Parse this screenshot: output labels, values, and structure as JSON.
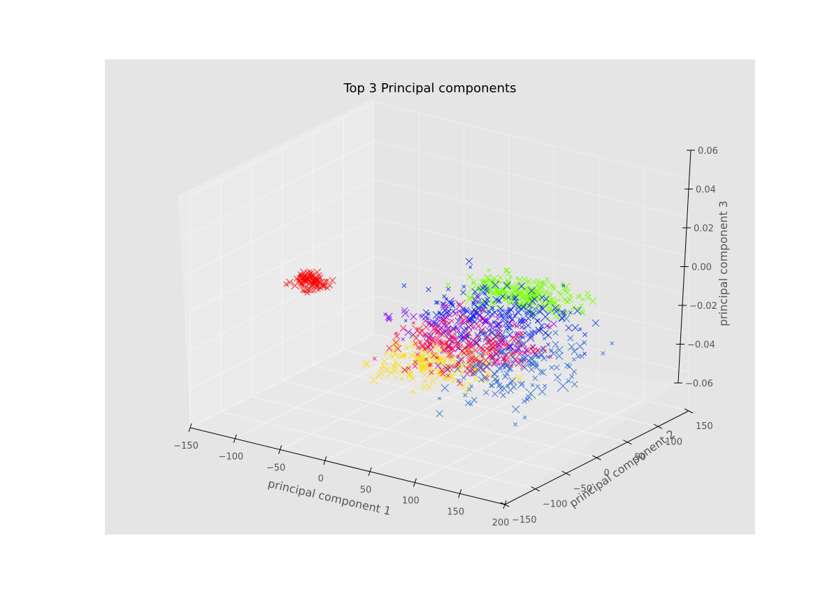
{
  "chart_data": {
    "type": "scatter",
    "projection": "3d",
    "title": "Top 3 Principal components",
    "xlabel": "principal component 1",
    "ylabel": "principal component 2",
    "zlabel": "principal component 3",
    "xlim": [
      -150,
      200
    ],
    "ylim": [
      -150,
      150
    ],
    "zlim": [
      -0.06,
      0.06
    ],
    "x_ticks": [
      "−150",
      "−100",
      "−50",
      "0",
      "50",
      "100",
      "150",
      "200"
    ],
    "y_ticks": [
      "−150",
      "−100",
      "−50",
      "0",
      "50",
      "100",
      "150"
    ],
    "z_ticks": [
      "−0.06",
      "−0.04",
      "−0.02",
      "0.00",
      "0.02",
      "0.04",
      "0.06"
    ],
    "marker": "x",
    "grid": true,
    "background_color": "#e5e5e5",
    "pane_color": "#ebebeb",
    "series": [
      {
        "color": "#ff0000",
        "x_range": [
          -150,
          -95
        ],
        "y_range": [
          -15,
          25
        ],
        "z_range": [
          -0.012,
          0.0
        ],
        "count": 90
      },
      {
        "color": "#77ff00",
        "x_range": [
          -20,
          160
        ],
        "y_range": [
          25,
          120
        ],
        "z_range": [
          -0.01,
          0.005
        ],
        "count": 230
      },
      {
        "color": "#0022ff",
        "x_range": [
          -45,
          180
        ],
        "y_range": [
          -70,
          130
        ],
        "z_range": [
          -0.025,
          0.01
        ],
        "count": 220
      },
      {
        "color": "#ffdd00",
        "x_range": [
          -35,
          130
        ],
        "y_range": [
          -110,
          40
        ],
        "z_range": [
          -0.035,
          -0.012
        ],
        "count": 170
      },
      {
        "color": "#8800ff",
        "x_range": [
          -60,
          150
        ],
        "y_range": [
          -60,
          100
        ],
        "z_range": [
          -0.028,
          0.0
        ],
        "count": 90
      },
      {
        "color": "#ff0055",
        "x_range": [
          -45,
          160
        ],
        "y_range": [
          -90,
          85
        ],
        "z_range": [
          -0.032,
          -0.005
        ],
        "count": 210
      },
      {
        "color": "#2266dd",
        "x_range": [
          40,
          200
        ],
        "y_range": [
          -150,
          120
        ],
        "z_range": [
          -0.04,
          0.0
        ],
        "count": 140
      }
    ]
  }
}
